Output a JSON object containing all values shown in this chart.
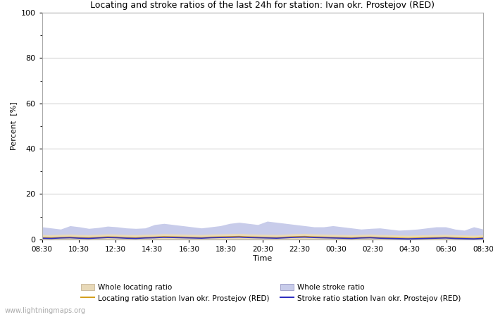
{
  "title": "Locating and stroke ratios of the last 24h for station: Ivan okr. Prostejov (RED)",
  "ylabel": "Percent  [%]",
  "xlabel": "Time",
  "xlim": [
    0,
    48
  ],
  "ylim": [
    0,
    100
  ],
  "yticks": [
    0,
    20,
    40,
    60,
    80,
    100
  ],
  "xtick_labels": [
    "08:30",
    "10:30",
    "12:30",
    "14:30",
    "16:30",
    "18:30",
    "20:30",
    "22:30",
    "00:30",
    "02:30",
    "04:30",
    "06:30",
    "08:30"
  ],
  "watermark": "www.lightningmaps.org",
  "bg_color": "#ffffff",
  "plot_bg_color": "#ffffff",
  "grid_color": "#cccccc",
  "whole_locating_fill_color": "#e8d9b8",
  "whole_stroke_fill_color": "#c8ccea",
  "locating_line_color": "#d4a020",
  "stroke_line_color": "#3030c0",
  "whole_locating_values": [
    2.1,
    2.0,
    2.2,
    2.3,
    2.1,
    2.0,
    2.2,
    2.4,
    2.3,
    2.1,
    2.0,
    2.2,
    2.3,
    2.5,
    2.4,
    2.3,
    2.2,
    2.1,
    2.3,
    2.4,
    2.5,
    2.6,
    2.4,
    2.3,
    2.2,
    2.1,
    2.3,
    2.5,
    2.6,
    2.4,
    2.3,
    2.2,
    2.1,
    2.0,
    2.2,
    2.3,
    2.1,
    2.0,
    1.9,
    1.8,
    1.9,
    2.0,
    2.1,
    2.2,
    2.0,
    1.9,
    1.8,
    2.0
  ],
  "whole_stroke_values": [
    5.5,
    5.0,
    4.5,
    6.0,
    5.5,
    4.8,
    5.2,
    5.8,
    5.5,
    5.0,
    4.8,
    5.0,
    6.5,
    7.0,
    6.5,
    6.0,
    5.5,
    5.0,
    5.5,
    6.0,
    7.0,
    7.5,
    7.0,
    6.5,
    8.0,
    7.5,
    7.0,
    6.5,
    6.0,
    5.5,
    5.5,
    6.0,
    5.5,
    5.0,
    4.5,
    4.8,
    5.0,
    4.5,
    4.0,
    4.2,
    4.5,
    5.0,
    5.5,
    5.5,
    4.5,
    4.0,
    5.5,
    4.5
  ],
  "locating_station_values": [
    0.8,
    0.7,
    0.9,
    1.0,
    0.8,
    0.7,
    0.9,
    1.1,
    1.0,
    0.8,
    0.7,
    0.9,
    1.0,
    1.2,
    1.1,
    1.0,
    0.9,
    0.8,
    1.0,
    1.1,
    1.2,
    1.3,
    1.1,
    1.0,
    0.9,
    0.8,
    1.0,
    1.2,
    1.3,
    1.1,
    1.0,
    0.9,
    0.8,
    0.7,
    0.9,
    1.0,
    0.8,
    0.7,
    0.6,
    0.5,
    0.6,
    0.7,
    0.8,
    0.9,
    0.7,
    0.6,
    0.5,
    0.7
  ],
  "stroke_station_values": [
    0.5,
    0.4,
    0.6,
    0.7,
    0.5,
    0.4,
    0.6,
    0.8,
    0.7,
    0.5,
    0.4,
    0.6,
    0.7,
    0.9,
    0.8,
    0.7,
    0.6,
    0.5,
    0.7,
    0.8,
    0.9,
    1.0,
    0.8,
    0.7,
    0.6,
    0.5,
    0.7,
    0.9,
    1.0,
    0.8,
    0.7,
    0.6,
    0.5,
    0.4,
    0.6,
    0.7,
    0.5,
    0.4,
    0.3,
    0.2,
    0.3,
    0.4,
    0.5,
    0.6,
    0.4,
    0.3,
    0.2,
    0.4
  ]
}
